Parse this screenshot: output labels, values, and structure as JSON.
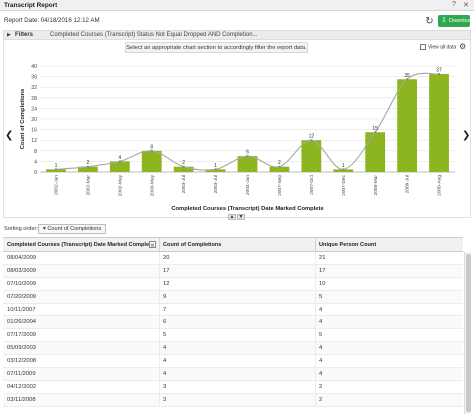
{
  "window": {
    "title": "Transcript Report",
    "help": "?",
    "close": "✕"
  },
  "report": {
    "date_label": "Report Date: 04/18/2016 12:12 AM",
    "download_label": "Download"
  },
  "filters": {
    "label": "Filters",
    "summary": "Completed Courses (Transcript) Status  Not Equal  Dropped  AND    Completion..."
  },
  "tooltip": "Select an appropriate chart section to accordingly filter the report data.",
  "view_all_label": "View all data",
  "chart_data": {
    "type": "bar",
    "xlabel": "Completed Courses (Transcript) Date Marked Complete",
    "ylabel": "Count of Completions",
    "ylim": [
      0,
      40
    ],
    "yticks": [
      0,
      4,
      8,
      12,
      16,
      20,
      24,
      28,
      32,
      36,
      40
    ],
    "grid": true,
    "bar_color": "#8db51f",
    "line_color": "#a6a6a6",
    "categories": [
      "2002-Jan",
      "2002-Mar",
      "2002-May",
      "2003-May",
      "2003-Jul",
      "2003-Jul",
      "2004-Jan",
      "2007-Sep",
      "2007-Oct",
      "2007-Dec",
      "2008-Mar",
      "2009-Jul",
      "2009-Aug"
    ],
    "values": [
      1,
      2,
      4,
      8,
      2,
      1,
      6,
      2,
      12,
      1,
      15,
      35,
      37
    ]
  },
  "sort": {
    "label": "Sorting order:",
    "chip": "Count of Completions"
  },
  "table": {
    "headers": [
      "Completed Courses (Transcript) Date Marked Complete",
      "Count of Completions",
      "Unique Person Count"
    ],
    "rows": [
      [
        "08/04/2009",
        "20",
        "21"
      ],
      [
        "08/03/2009",
        "17",
        "17"
      ],
      [
        "07/10/2009",
        "12",
        "10"
      ],
      [
        "07/20/2009",
        "9",
        "5"
      ],
      [
        "10/11/2007",
        "7",
        "4"
      ],
      [
        "01/26/2004",
        "6",
        "4"
      ],
      [
        "07/17/2009",
        "5",
        "5"
      ],
      [
        "05/09/2003",
        "4",
        "4"
      ],
      [
        "03/12/2008",
        "4",
        "4"
      ],
      [
        "07/11/2009",
        "4",
        "4"
      ],
      [
        "04/12/2002",
        "3",
        "2"
      ],
      [
        "03/11/2008",
        "3",
        "2"
      ]
    ]
  }
}
